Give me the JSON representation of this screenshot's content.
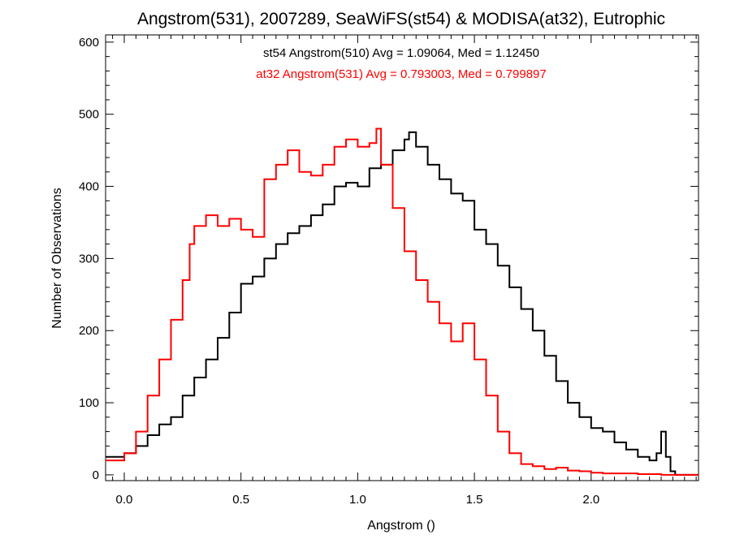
{
  "chart_data": {
    "type": "line",
    "title": "Angstrom(531), 2007289, SeaWiFS(st54) & MODISA(at32), Eutrophic",
    "xlabel": "Angstrom ()",
    "ylabel": "Number of Observations",
    "xlim": [
      -0.08,
      2.46
    ],
    "ylim": [
      -8,
      610
    ],
    "x_ticks": [
      0.0,
      0.5,
      1.0,
      1.5,
      2.0
    ],
    "x_tick_labels": [
      "0.0",
      "0.5",
      "1.0",
      "1.5",
      "2.0"
    ],
    "y_ticks": [
      0,
      100,
      200,
      300,
      400,
      500,
      600
    ],
    "y_tick_labels": [
      "0",
      "100",
      "200",
      "300",
      "400",
      "500",
      "600"
    ],
    "grid": false,
    "annotations": [
      {
        "text": "st54 Angstrom(510) Avg = 1.09064, Med = 1.12450",
        "color": "#000000"
      },
      {
        "text": "at32 Angstrom(531) Avg = 0.793003, Med = 0.799897",
        "color": "#ff0000"
      }
    ],
    "series": [
      {
        "color": "#000000",
        "style": "step",
        "x": [
          -0.08,
          0.0,
          0.05,
          0.1,
          0.15,
          0.2,
          0.25,
          0.3,
          0.35,
          0.4,
          0.45,
          0.5,
          0.55,
          0.6,
          0.65,
          0.7,
          0.75,
          0.8,
          0.85,
          0.9,
          0.95,
          1.0,
          1.05,
          1.1,
          1.15,
          1.2,
          1.22,
          1.25,
          1.3,
          1.35,
          1.4,
          1.45,
          1.5,
          1.55,
          1.6,
          1.65,
          1.7,
          1.75,
          1.8,
          1.85,
          1.9,
          1.95,
          2.0,
          2.05,
          2.1,
          2.15,
          2.2,
          2.25,
          2.28,
          2.3,
          2.32,
          2.34,
          2.36
        ],
        "values": [
          25,
          30,
          40,
          55,
          70,
          80,
          110,
          135,
          160,
          190,
          225,
          265,
          275,
          300,
          320,
          335,
          345,
          360,
          375,
          400,
          405,
          400,
          425,
          430,
          450,
          465,
          475,
          455,
          430,
          410,
          390,
          380,
          340,
          320,
          290,
          260,
          230,
          200,
          165,
          130,
          100,
          80,
          65,
          60,
          45,
          35,
          25,
          20,
          30,
          60,
          25,
          5,
          0
        ]
      },
      {
        "color": "#ff0000",
        "style": "step",
        "x": [
          -0.08,
          0.0,
          0.05,
          0.1,
          0.15,
          0.2,
          0.25,
          0.28,
          0.3,
          0.35,
          0.4,
          0.45,
          0.5,
          0.55,
          0.6,
          0.65,
          0.7,
          0.75,
          0.8,
          0.85,
          0.9,
          0.95,
          1.0,
          1.05,
          1.08,
          1.1,
          1.15,
          1.2,
          1.25,
          1.3,
          1.35,
          1.4,
          1.45,
          1.5,
          1.55,
          1.6,
          1.65,
          1.7,
          1.75,
          1.8,
          1.85,
          1.9,
          1.95,
          2.0,
          2.05,
          2.1,
          2.2,
          2.3,
          2.46
        ],
        "values": [
          20,
          30,
          60,
          110,
          160,
          215,
          270,
          320,
          345,
          360,
          345,
          355,
          340,
          330,
          410,
          430,
          450,
          420,
          415,
          430,
          455,
          465,
          455,
          460,
          480,
          430,
          370,
          310,
          270,
          240,
          210,
          185,
          210,
          160,
          110,
          60,
          30,
          15,
          12,
          8,
          10,
          6,
          5,
          3,
          2,
          2,
          1,
          0,
          0
        ]
      }
    ]
  }
}
